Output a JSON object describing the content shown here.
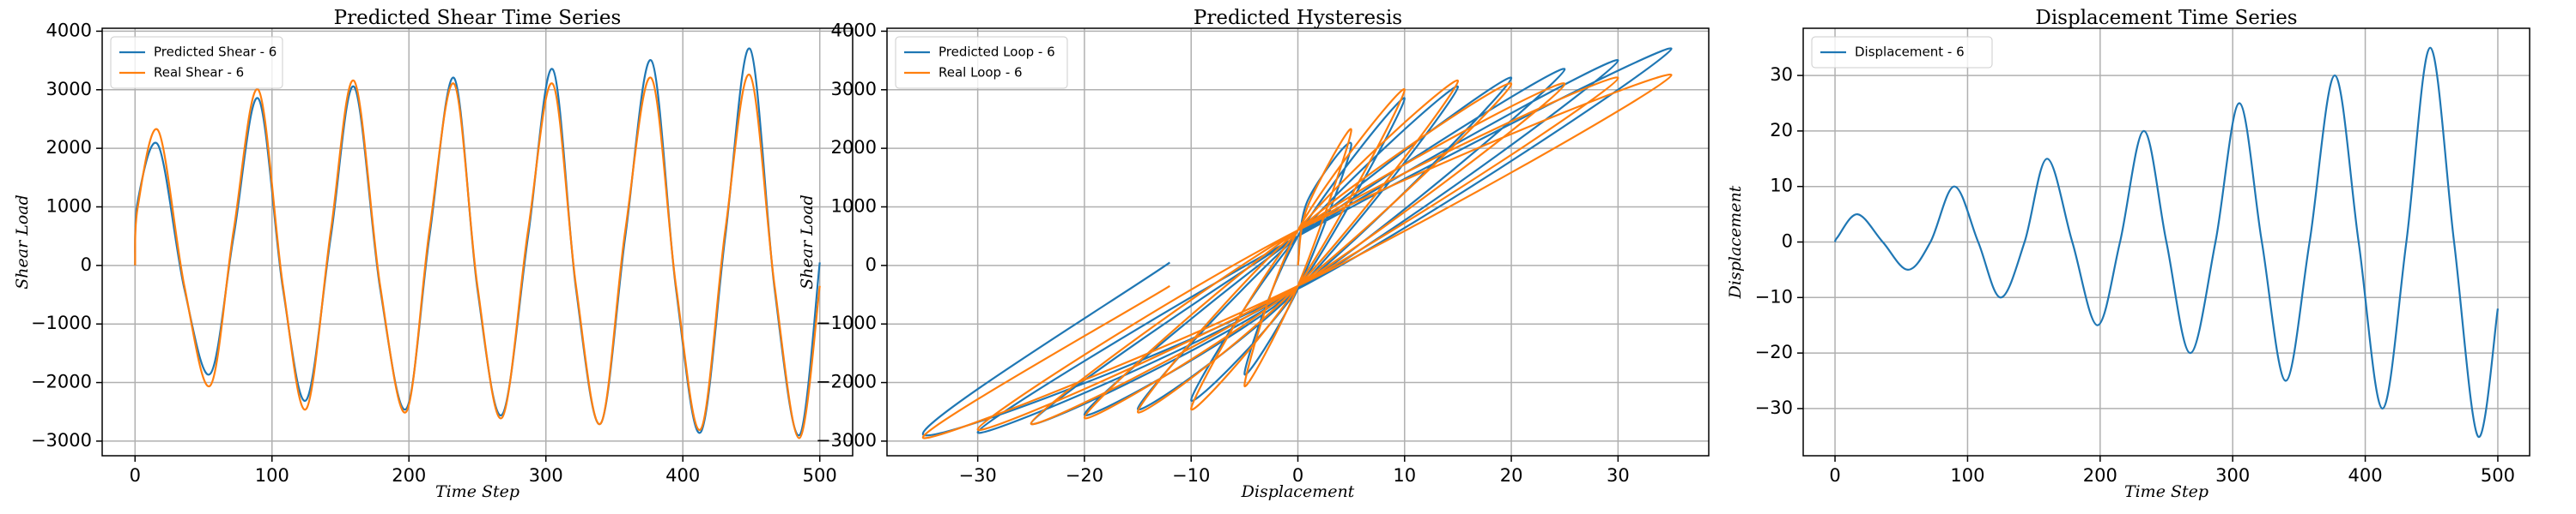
{
  "chart_data": [
    {
      "type": "line",
      "title": "Predicted Shear Time Series",
      "xlabel": "Time Step",
      "ylabel": "Shear Load",
      "x": [
        0,
        2,
        17,
        36,
        55,
        72,
        90,
        108,
        125,
        143,
        160,
        179,
        198,
        215,
        233,
        250,
        268,
        287,
        305,
        322,
        340,
        358,
        377,
        395,
        413,
        431,
        449,
        467,
        485,
        500
      ],
      "series": [
        {
          "name": "Predicted Shear - 6",
          "color": "#1f77b4",
          "values": [
            0,
            1100,
            2050,
            -400,
            -1850,
            500,
            2850,
            -400,
            -2300,
            500,
            3050,
            -400,
            -2450,
            500,
            3200,
            -400,
            -2550,
            500,
            3350,
            -400,
            -2700,
            500,
            3500,
            -400,
            -2850,
            500,
            3700,
            -400,
            -2900,
            50
          ]
        },
        {
          "name": "Real Shear - 6",
          "color": "#ff7f0e",
          "values": [
            0,
            1000,
            2300,
            -350,
            -2050,
            600,
            3000,
            -350,
            -2450,
            600,
            3150,
            -350,
            -2500,
            600,
            3100,
            -350,
            -2600,
            600,
            3100,
            -350,
            -2700,
            600,
            3200,
            -350,
            -2800,
            600,
            3250,
            -350,
            -2950,
            -350
          ]
        }
      ],
      "xlim": [
        -24,
        524
      ],
      "xticks": [
        0,
        100,
        200,
        300,
        400,
        500
      ],
      "ylim": [
        -3250,
        4050
      ],
      "yticks": [
        {
          "value": -3000,
          "label": "−3000"
        },
        {
          "value": -2000,
          "label": "−2000"
        },
        {
          "value": -1000,
          "label": "−1000"
        },
        0,
        1000,
        2000,
        3000,
        4000
      ],
      "grid": true,
      "legend": "upper left"
    },
    {
      "type": "line",
      "title": "Predicted Hysteresis",
      "xlabel": "Displacement",
      "ylabel": "Shear Load",
      "x": [
        0,
        0.9,
        5,
        0,
        -5,
        0,
        10,
        0,
        -10,
        0,
        15,
        0,
        -15,
        0,
        20,
        0,
        -20,
        0,
        25,
        0,
        -25,
        0,
        30,
        0,
        -30,
        0,
        35,
        0,
        -35,
        -12
      ],
      "series": [
        {
          "name": "Predicted Loop - 6",
          "color": "#1f77b4",
          "values": [
            0,
            1100,
            2050,
            -400,
            -1850,
            500,
            2850,
            -400,
            -2300,
            500,
            3050,
            -400,
            -2450,
            500,
            3200,
            -400,
            -2550,
            500,
            3350,
            -400,
            -2700,
            500,
            3500,
            -400,
            -2850,
            500,
            3700,
            -400,
            -2900,
            50
          ]
        },
        {
          "name": "Real Loop - 6",
          "color": "#ff7f0e",
          "values": [
            0,
            1000,
            2300,
            -350,
            -2050,
            600,
            3000,
            -350,
            -2450,
            600,
            3150,
            -350,
            -2500,
            600,
            3100,
            -350,
            -2600,
            600,
            3100,
            -350,
            -2700,
            600,
            3200,
            -350,
            -2800,
            600,
            3250,
            -350,
            -2950,
            -350
          ]
        }
      ],
      "xlim": [
        -38.5,
        38.5
      ],
      "xticks": [
        {
          "value": -30,
          "label": "−30"
        },
        {
          "value": -20,
          "label": "−20"
        },
        {
          "value": -10,
          "label": "−10"
        },
        0,
        10,
        20,
        30
      ],
      "ylim": [
        -3250,
        4050
      ],
      "yticks": [
        {
          "value": -3000,
          "label": "−3000"
        },
        {
          "value": -2000,
          "label": "−2000"
        },
        {
          "value": -1000,
          "label": "−1000"
        },
        0,
        1000,
        2000,
        3000,
        4000
      ],
      "grid": true,
      "legend": "upper left"
    },
    {
      "type": "line",
      "title": "Displacement Time Series",
      "xlabel": "Time Step",
      "ylabel": "Displacement",
      "x": [
        0,
        2,
        17,
        36,
        55,
        72,
        90,
        108,
        125,
        143,
        160,
        179,
        198,
        215,
        233,
        250,
        268,
        287,
        305,
        322,
        340,
        358,
        377,
        395,
        413,
        431,
        449,
        467,
        485,
        500
      ],
      "series": [
        {
          "name": "Displacement - 6",
          "color": "#1f77b4",
          "values": [
            0,
            0.9,
            5,
            0,
            -5,
            0,
            10,
            0,
            -10,
            0,
            15,
            0,
            -15,
            0,
            20,
            0,
            -20,
            0,
            25,
            0,
            -25,
            0,
            30,
            0,
            -30,
            0,
            35,
            0,
            -35,
            -12
          ]
        }
      ],
      "xlim": [
        -24,
        524
      ],
      "xticks": [
        0,
        100,
        200,
        300,
        400,
        500
      ],
      "ylim": [
        -38.5,
        38.5
      ],
      "yticks": [
        {
          "value": -30,
          "label": "−30"
        },
        {
          "value": -20,
          "label": "−20"
        },
        {
          "value": -10,
          "label": "−10"
        },
        0,
        10,
        20,
        30
      ],
      "grid": true,
      "legend": "upper left"
    }
  ]
}
